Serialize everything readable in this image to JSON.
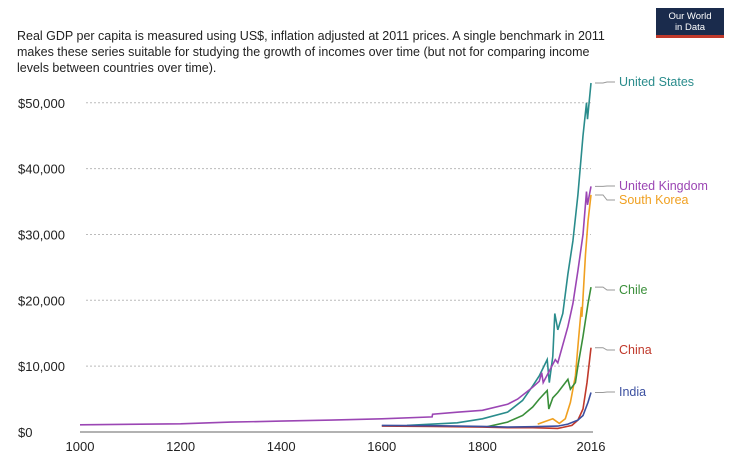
{
  "subtitle": "Real GDP per capita is measured using US$, inflation adjusted at 2011 prices. A single benchmark in 2011 makes these series suitable for studying the growth of incomes over time (but not for comparing income levels between countries over time).",
  "logo": {
    "line1": "Our World",
    "line2": "in Data",
    "color": "#1a2b4c",
    "accent": "#c0392b"
  },
  "chart_data": {
    "type": "line",
    "title": "",
    "xlabel": "",
    "ylabel": "",
    "xlim": [
      1000,
      2016
    ],
    "ylim": [
      0,
      55000
    ],
    "x_ticks": [
      {
        "v": 1000,
        "label": "1000"
      },
      {
        "v": 1200,
        "label": "1200"
      },
      {
        "v": 1400,
        "label": "1400"
      },
      {
        "v": 1600,
        "label": "1600"
      },
      {
        "v": 1800,
        "label": "1800"
      },
      {
        "v": 2016,
        "label": "2016"
      }
    ],
    "y_ticks": [
      {
        "v": 0,
        "label": "$0"
      },
      {
        "v": 10000,
        "label": "$10,000"
      },
      {
        "v": 20000,
        "label": "$20,000"
      },
      {
        "v": 30000,
        "label": "$30,000"
      },
      {
        "v": 40000,
        "label": "$40,000"
      },
      {
        "v": 50000,
        "label": "$50,000"
      }
    ],
    "grid": "horizontal dotted",
    "legend": "right, inline labels",
    "series": [
      {
        "name": "United States",
        "color": "#2a8c8c",
        "label_value": 53000,
        "points": [
          [
            1650,
            1000
          ],
          [
            1750,
            1400
          ],
          [
            1800,
            2000
          ],
          [
            1850,
            3000
          ],
          [
            1880,
            4800
          ],
          [
            1900,
            7000
          ],
          [
            1913,
            8500
          ],
          [
            1929,
            11000
          ],
          [
            1933,
            7500
          ],
          [
            1940,
            11500
          ],
          [
            1944,
            18000
          ],
          [
            1950,
            15500
          ],
          [
            1960,
            18000
          ],
          [
            1970,
            24000
          ],
          [
            1980,
            29000
          ],
          [
            1990,
            36000
          ],
          [
            2000,
            45000
          ],
          [
            2007,
            50000
          ],
          [
            2009,
            47500
          ],
          [
            2016,
            53000
          ]
        ]
      },
      {
        "name": "United Kingdom",
        "color": "#9b46b4",
        "label_value": 37300,
        "points": [
          [
            1000,
            1100
          ],
          [
            1200,
            1250
          ],
          [
            1300,
            1500
          ],
          [
            1400,
            1650
          ],
          [
            1500,
            1800
          ],
          [
            1600,
            2000
          ],
          [
            1700,
            2300
          ],
          [
            1701,
            2700
          ],
          [
            1750,
            3000
          ],
          [
            1800,
            3300
          ],
          [
            1850,
            4200
          ],
          [
            1870,
            5000
          ],
          [
            1900,
            6800
          ],
          [
            1913,
            7700
          ],
          [
            1918,
            9000
          ],
          [
            1921,
            7500
          ],
          [
            1945,
            11000
          ],
          [
            1950,
            10500
          ],
          [
            1970,
            16000
          ],
          [
            1980,
            19500
          ],
          [
            1990,
            24500
          ],
          [
            2000,
            30000
          ],
          [
            2007,
            36500
          ],
          [
            2009,
            34500
          ],
          [
            2016,
            37300
          ]
        ]
      },
      {
        "name": "South Korea",
        "color": "#f0a020",
        "label_value": 36000,
        "points": [
          [
            1910,
            1200
          ],
          [
            1940,
            2000
          ],
          [
            1953,
            1300
          ],
          [
            1965,
            2000
          ],
          [
            1975,
            4500
          ],
          [
            1985,
            8500
          ],
          [
            1990,
            13000
          ],
          [
            1997,
            19000
          ],
          [
            1998,
            17500
          ],
          [
            2005,
            27000
          ],
          [
            2010,
            32000
          ],
          [
            2016,
            36000
          ]
        ]
      },
      {
        "name": "Chile",
        "color": "#3a8f3a",
        "label_value": 22000,
        "points": [
          [
            1810,
            800
          ],
          [
            1850,
            1500
          ],
          [
            1880,
            2500
          ],
          [
            1900,
            3800
          ],
          [
            1913,
            5000
          ],
          [
            1929,
            6300
          ],
          [
            1932,
            3500
          ],
          [
            1940,
            5200
          ],
          [
            1950,
            6000
          ],
          [
            1970,
            8000
          ],
          [
            1975,
            6500
          ],
          [
            1985,
            7500
          ],
          [
            1990,
            10000
          ],
          [
            2000,
            14500
          ],
          [
            2010,
            19500
          ],
          [
            2016,
            22000
          ]
        ]
      },
      {
        "name": "China",
        "color": "#c0392b",
        "label_value": 12800,
        "points": [
          [
            1600,
            900
          ],
          [
            1700,
            850
          ],
          [
            1800,
            750
          ],
          [
            1850,
            650
          ],
          [
            1900,
            650
          ],
          [
            1950,
            550
          ],
          [
            1960,
            700
          ],
          [
            1978,
            1000
          ],
          [
            1990,
            1800
          ],
          [
            2000,
            3500
          ],
          [
            2008,
            7500
          ],
          [
            2016,
            12800
          ]
        ]
      },
      {
        "name": "India",
        "color": "#3c50a0",
        "label_value": 6000,
        "points": [
          [
            1600,
            1000
          ],
          [
            1700,
            950
          ],
          [
            1800,
            850
          ],
          [
            1850,
            750
          ],
          [
            1900,
            800
          ],
          [
            1950,
            900
          ],
          [
            1970,
            1200
          ],
          [
            1990,
            1800
          ],
          [
            2000,
            2500
          ],
          [
            2010,
            4500
          ],
          [
            2016,
            6000
          ]
        ]
      }
    ]
  }
}
